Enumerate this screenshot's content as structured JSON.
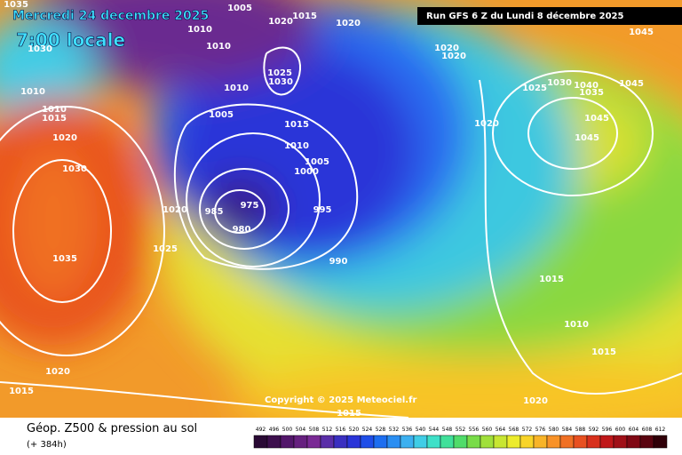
{
  "header": {
    "date": "Mercredi 24 decembre 2025",
    "time": "7:00 locale",
    "run": "Run GFS 6 Z du Lundi 8 décembre 2025"
  },
  "copyright": "Copyright © 2025 Meteociel.fr",
  "footer": {
    "title": "Géop. Z500 & pression au sol",
    "lead": "(+ 384h)"
  },
  "isobars": [
    1035,
    1005,
    1015,
    1020,
    1020,
    1010,
    1030,
    1010,
    1025,
    1030,
    1020,
    1020,
    1045,
    1030,
    1040,
    1025,
    1045,
    1035,
    1010,
    1010,
    1010,
    1015,
    1005,
    1015,
    1045,
    1020,
    1020,
    1010,
    1045,
    1005,
    1030,
    1000,
    1020,
    975,
    985,
    995,
    980,
    1025,
    1035,
    990,
    1015,
    1010,
    1015,
    1020,
    1015,
    1020,
    1015
  ],
  "scale": {
    "labels": [
      492,
      496,
      500,
      504,
      508,
      512,
      516,
      520,
      524,
      528,
      532,
      536,
      540,
      544,
      548,
      552,
      556,
      560,
      564,
      568,
      572,
      576,
      580,
      584,
      588,
      592,
      596,
      600,
      604,
      608,
      612
    ],
    "colors": [
      "#2a0a35",
      "#3d0f4d",
      "#52166a",
      "#66207f",
      "#7a2a95",
      "#5a2ea8",
      "#3a2fc0",
      "#2a34d8",
      "#1f4ee8",
      "#1d6ef0",
      "#2a8ef2",
      "#3cb0f0",
      "#40cde6",
      "#3ee0c8",
      "#40e09a",
      "#50dc6a",
      "#78dc48",
      "#a0e03a",
      "#c8e632",
      "#ecec2c",
      "#f8d428",
      "#f8b428",
      "#f89228",
      "#f07024",
      "#e85020",
      "#d8301c",
      "#c0181a",
      "#a01018",
      "#800814",
      "#5a0410",
      "#300008"
    ]
  }
}
